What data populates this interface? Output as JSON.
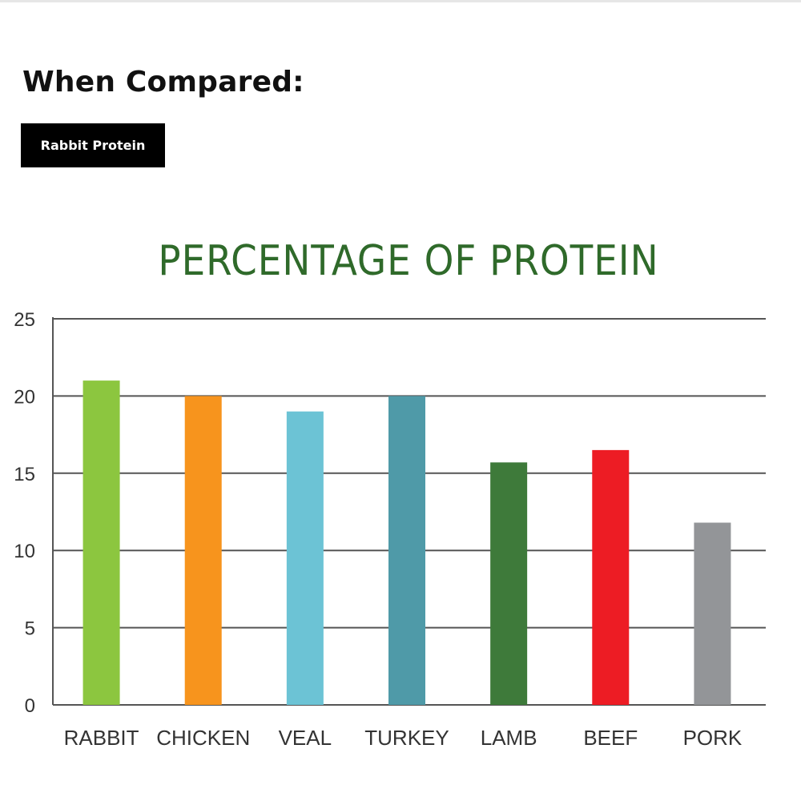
{
  "header": {
    "title": "When Compared:",
    "tag_label": "Rabbit Protein"
  },
  "chart_data": {
    "type": "bar",
    "title": "PERCENTAGE OF PROTEIN",
    "xlabel": "",
    "ylabel": "",
    "ylim": [
      0,
      25
    ],
    "yticks": [
      "0",
      "5",
      "10",
      "15",
      "20",
      "25"
    ],
    "grid": true,
    "categories": [
      "RABBIT",
      "CHICKEN",
      "VEAL",
      "TURKEY",
      "LAMB",
      "BEEF",
      "PORK"
    ],
    "values": [
      21,
      20,
      19,
      20,
      15.7,
      16.5,
      11.8
    ],
    "colors": [
      "#8cc63f",
      "#f7941d",
      "#6cc3d5",
      "#4f9aa8",
      "#3e7a3a",
      "#ed1c24",
      "#939598"
    ]
  }
}
